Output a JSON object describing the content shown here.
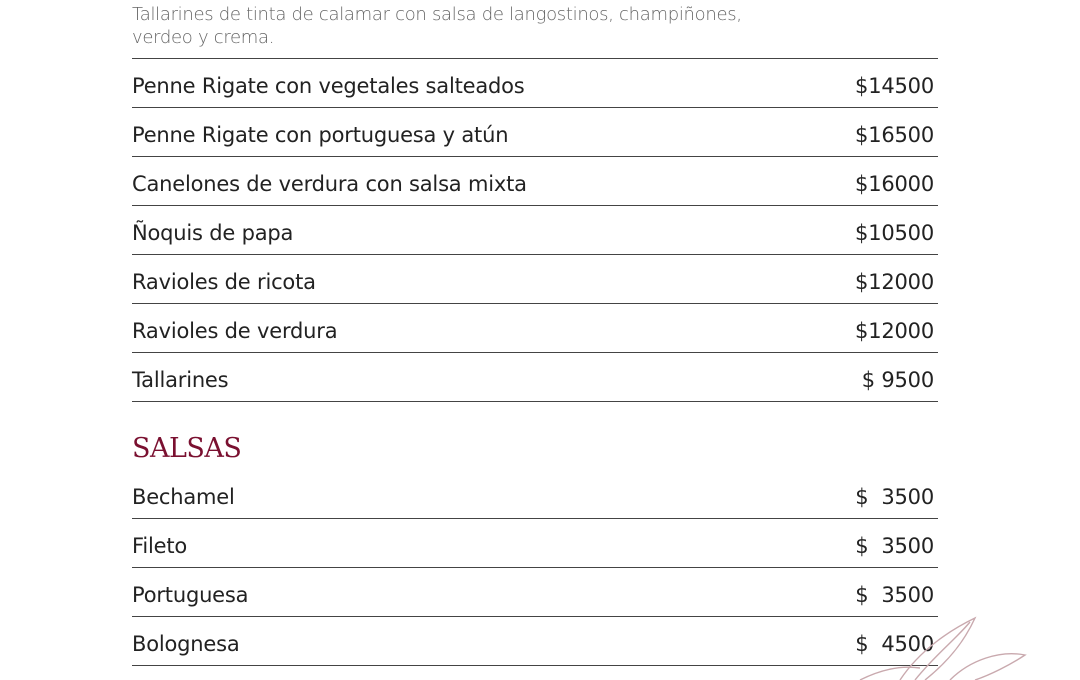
{
  "pastas": {
    "top_item_description": "Tallarines de tinta de calamar con salsa de langostinos, champiñones, verdeo y crema.",
    "items": [
      {
        "name": "Penne Rigate con vegetales salteados",
        "price": "$14500"
      },
      {
        "name": "Penne Rigate con portuguesa y atún",
        "price": "$16500"
      },
      {
        "name": "Canelones de verdura con salsa mixta",
        "price": "$16000"
      },
      {
        "name": "Ñoquis de papa",
        "price": "$10500"
      },
      {
        "name": "Ravioles de ricota",
        "price": "$12000"
      },
      {
        "name": "Ravioles de verdura",
        "price": "$12000"
      },
      {
        "name": "Tallarines",
        "price": "$ 9500"
      }
    ]
  },
  "salsas": {
    "title": "SALSAS",
    "items": [
      {
        "name": "Bechamel",
        "price": "$  3500"
      },
      {
        "name": "Fileto",
        "price": "$  3500"
      },
      {
        "name": "Portuguesa",
        "price": "$  3500"
      },
      {
        "name": "Bolognesa",
        "price": "$  4500"
      }
    ]
  },
  "colors": {
    "heading": "#7a1030",
    "text": "#222222",
    "leaf": "#c9a9ae"
  },
  "decoration": "leaf-illustration"
}
